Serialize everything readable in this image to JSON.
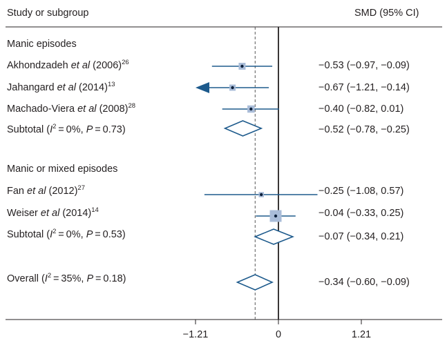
{
  "chart_data": {
    "type": "forest",
    "header": {
      "left": "Study or subgroup",
      "right": "SMD (95% CI)"
    },
    "x_axis": {
      "ticks": [
        -1.21,
        0,
        1.21
      ],
      "tick_labels": [
        "−1.21",
        "0",
        "1.21"
      ],
      "range": [
        -1.21,
        1.21
      ]
    },
    "overall_effect_reference": -0.34,
    "groups": [
      {
        "name": "Manic episodes",
        "studies": [
          {
            "author": "Akhondzadeh",
            "etal": "et al",
            "year": "(2006)",
            "ref": "26",
            "smd": -0.53,
            "ci_low": -0.97,
            "ci_high": -0.09,
            "weight_rel": 0.8,
            "ci_text": "−0.53 (−0.97, −0.09)"
          },
          {
            "author": "Jahangard",
            "etal": "et al",
            "year": "(2014)",
            "ref": "13",
            "smd": -0.67,
            "ci_low": -1.21,
            "ci_high": -0.14,
            "weight_rel": 0.7,
            "arrow_left": true,
            "ci_text": "−0.67 (−1.21, −0.14)"
          },
          {
            "author": "Machado-Viera",
            "etal": "et al",
            "year": "(2008)",
            "ref": "28",
            "smd": -0.4,
            "ci_low": -0.82,
            "ci_high": 0.01,
            "weight_rel": 0.85,
            "ci_text": "−0.40 (−0.82, 0.01)"
          }
        ],
        "subtotal": {
          "label_prefix": "Subtotal (",
          "i2": "I",
          "i2_value": "2",
          "stat_text": " = 0%, ",
          "p_label": "P",
          "p_text": " = 0.73)",
          "smd": -0.52,
          "ci_low": -0.78,
          "ci_high": -0.25,
          "ci_text": "−0.52 (−0.78, −0.25)"
        }
      },
      {
        "name": "Manic or mixed episodes",
        "studies": [
          {
            "author": "Fan",
            "etal": "et al",
            "year": "(2012)",
            "ref": "27",
            "smd": -0.25,
            "ci_low": -1.08,
            "ci_high": 0.57,
            "weight_rel": 0.55,
            "ci_text": "−0.25 (−1.08, 0.57)"
          },
          {
            "author": "Weiser",
            "etal": "et al",
            "year": "(2014)",
            "ref": "14",
            "smd": -0.04,
            "ci_low": -0.33,
            "ci_high": 0.25,
            "weight_rel": 1.5,
            "ci_text": "−0.04 (−0.33, 0.25)"
          }
        ],
        "subtotal": {
          "label_prefix": "Subtotal (",
          "i2": "I",
          "i2_value": "2",
          "stat_text": " = 0%, ",
          "p_label": "P",
          "p_text": " = 0.53)",
          "smd": -0.07,
          "ci_low": -0.34,
          "ci_high": 0.21,
          "ci_text": "−0.07 (−0.34, 0.21)"
        }
      }
    ],
    "overall": {
      "label_prefix": "Overall (",
      "i2": "I",
      "i2_value": "2",
      "stat_text": " = 35%, ",
      "p_label": "P",
      "p_text": " = 0.18)",
      "smd": -0.34,
      "ci_low": -0.6,
      "ci_high": -0.09,
      "ci_text": "−0.34 (−0.60, −0.09)"
    },
    "colors": {
      "line": "#1d5a8c",
      "box": "#a9bcd8",
      "dot": "#0b1f3a",
      "axis": "#231f20",
      "dashed": "#555555"
    }
  }
}
